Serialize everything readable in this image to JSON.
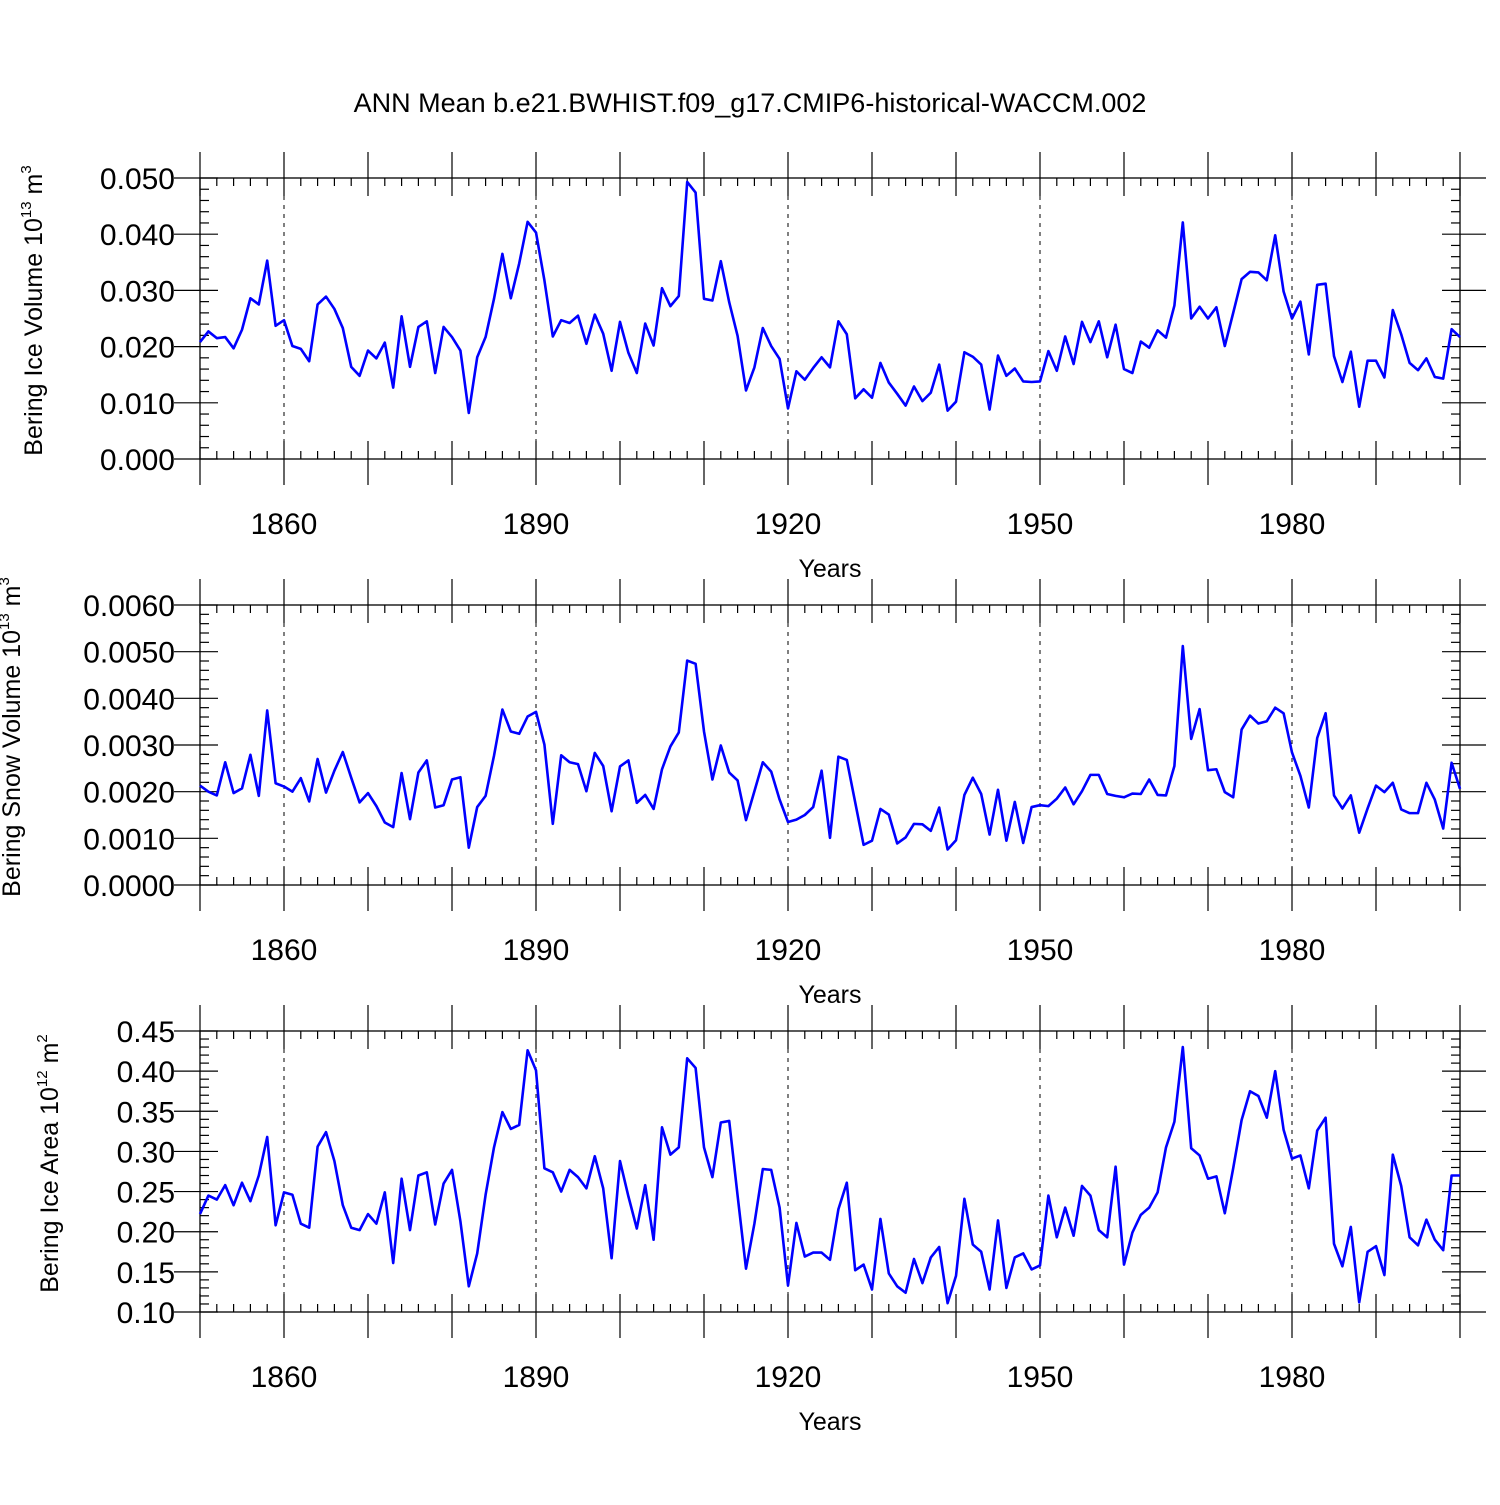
{
  "title": "ANN Mean b.e21.BWHIST.f09_g17.CMIP6-historical-WACCM.002",
  "colors": {
    "line": "#0000ff",
    "axes": "#000000",
    "background": "#ffffff"
  },
  "chart_data": [
    {
      "type": "line",
      "ylabel": {
        "text": "Bering Ice Volume 10",
        "exp": "13",
        "unit": " m",
        "unit_exp": "3"
      },
      "xlabel": "Years",
      "xlim": [
        1850,
        2000
      ],
      "ylim": [
        0.0,
        0.05
      ],
      "yticks": [
        0.0,
        0.01,
        0.02,
        0.03,
        0.04,
        0.05
      ],
      "ytick_labels": [
        "0.000",
        "0.010",
        "0.020",
        "0.030",
        "0.040",
        "0.050"
      ],
      "xticks": [
        1860,
        1890,
        1920,
        1950,
        1980
      ],
      "xtick_labels": [
        "1860",
        "1890",
        "1920",
        "1950",
        "1980"
      ],
      "grid": "vertical dashed at major x ticks",
      "x_start": 1850,
      "values": [
        0.0208,
        0.0227,
        0.0215,
        0.0217,
        0.0197,
        0.023,
        0.0286,
        0.0275,
        0.0353,
        0.0237,
        0.0247,
        0.0201,
        0.0196,
        0.0174,
        0.0275,
        0.0289,
        0.0267,
        0.0233,
        0.0164,
        0.0148,
        0.0193,
        0.0179,
        0.0207,
        0.0127,
        0.0254,
        0.0164,
        0.0235,
        0.0245,
        0.0153,
        0.0235,
        0.0217,
        0.0193,
        0.0082,
        0.0181,
        0.0217,
        0.0285,
        0.0365,
        0.0286,
        0.0348,
        0.0422,
        0.0403,
        0.0318,
        0.0218,
        0.0247,
        0.0242,
        0.0255,
        0.0205,
        0.0257,
        0.0223,
        0.0157,
        0.0244,
        0.0189,
        0.0153,
        0.0241,
        0.0202,
        0.0304,
        0.0272,
        0.029,
        0.0493,
        0.0474,
        0.0285,
        0.0282,
        0.0352,
        0.0279,
        0.0219,
        0.0122,
        0.0163,
        0.0233,
        0.0201,
        0.0178,
        0.009,
        0.0156,
        0.0141,
        0.0162,
        0.0181,
        0.0163,
        0.0245,
        0.0222,
        0.0108,
        0.0124,
        0.0109,
        0.0171,
        0.0136,
        0.0116,
        0.0095,
        0.0129,
        0.0103,
        0.0118,
        0.0168,
        0.0086,
        0.0102,
        0.019,
        0.0182,
        0.0168,
        0.0088,
        0.0184,
        0.0148,
        0.0161,
        0.0138,
        0.0137,
        0.0138,
        0.0192,
        0.0157,
        0.0218,
        0.0169,
        0.0244,
        0.0208,
        0.0245,
        0.0181,
        0.0239,
        0.016,
        0.0153,
        0.0209,
        0.0198,
        0.0229,
        0.0216,
        0.0273,
        0.0421,
        0.025,
        0.0271,
        0.025,
        0.027,
        0.0201,
        0.026,
        0.032,
        0.0333,
        0.0332,
        0.0318,
        0.0398,
        0.0298,
        0.025,
        0.028,
        0.0186,
        0.031,
        0.0312,
        0.0183,
        0.0137,
        0.0191,
        0.0093,
        0.0175,
        0.0175,
        0.0145,
        0.0265,
        0.0222,
        0.0171,
        0.0158,
        0.0179,
        0.0146,
        0.0143,
        0.0231,
        0.0217
      ]
    },
    {
      "type": "line",
      "ylabel": {
        "text": "Bering Snow Volume 10",
        "exp": "13",
        "unit": " m",
        "unit_exp": "3"
      },
      "xlabel": "Years",
      "xlim": [
        1850,
        2000
      ],
      "ylim": [
        0.0,
        0.006
      ],
      "yticks": [
        0.0,
        0.001,
        0.002,
        0.003,
        0.004,
        0.005,
        0.006
      ],
      "ytick_labels": [
        "0.0000",
        "0.0010",
        "0.0020",
        "0.0030",
        "0.0040",
        "0.0050",
        "0.0060"
      ],
      "xticks": [
        1860,
        1890,
        1920,
        1950,
        1980
      ],
      "xtick_labels": [
        "1860",
        "1890",
        "1920",
        "1950",
        "1980"
      ],
      "grid": "vertical dashed at major x ticks",
      "x_start": 1850,
      "values": [
        0.00213,
        0.002,
        0.00192,
        0.00263,
        0.00197,
        0.00207,
        0.00279,
        0.00191,
        0.00374,
        0.00218,
        0.00211,
        0.002,
        0.00229,
        0.00179,
        0.0027,
        0.00198,
        0.00245,
        0.00285,
        0.0023,
        0.00177,
        0.00197,
        0.00169,
        0.00134,
        0.00124,
        0.0024,
        0.00141,
        0.00241,
        0.00267,
        0.00166,
        0.00171,
        0.00226,
        0.00231,
        0.0008,
        0.00167,
        0.00191,
        0.00277,
        0.00376,
        0.00329,
        0.00324,
        0.00361,
        0.00371,
        0.00301,
        0.00131,
        0.00278,
        0.00263,
        0.00259,
        0.00201,
        0.00283,
        0.00255,
        0.00158,
        0.00254,
        0.00267,
        0.00176,
        0.00193,
        0.00163,
        0.00248,
        0.00297,
        0.00327,
        0.00481,
        0.00474,
        0.00329,
        0.00226,
        0.00299,
        0.00241,
        0.00224,
        0.00139,
        0.00201,
        0.00263,
        0.00243,
        0.00183,
        0.00135,
        0.0014,
        0.0015,
        0.00167,
        0.00245,
        0.00101,
        0.00275,
        0.00268,
        0.00177,
        0.00086,
        0.00095,
        0.00163,
        0.00151,
        0.00089,
        0.00102,
        0.00131,
        0.0013,
        0.00116,
        0.00166,
        0.00076,
        0.00096,
        0.00193,
        0.0023,
        0.00195,
        0.00108,
        0.00204,
        0.00095,
        0.00178,
        0.0009,
        0.00167,
        0.00171,
        0.00169,
        0.00185,
        0.00209,
        0.00173,
        0.00201,
        0.00236,
        0.00236,
        0.00195,
        0.00191,
        0.00188,
        0.00196,
        0.00195,
        0.00226,
        0.00193,
        0.00192,
        0.00255,
        0.00512,
        0.00313,
        0.00377,
        0.00246,
        0.00248,
        0.00199,
        0.00188,
        0.00333,
        0.00363,
        0.00346,
        0.00351,
        0.0038,
        0.00368,
        0.00284,
        0.00234,
        0.00166,
        0.00315,
        0.00368,
        0.00192,
        0.00164,
        0.00192,
        0.00112,
        0.00164,
        0.00213,
        0.00199,
        0.00219,
        0.00162,
        0.00154,
        0.00154,
        0.00219,
        0.00183,
        0.00121,
        0.00262,
        0.00206
      ]
    },
    {
      "type": "line",
      "ylabel": {
        "text": "Bering Ice Area 10",
        "exp": "12",
        "unit": " m",
        "unit_exp": "2"
      },
      "xlabel": "Years",
      "xlim": [
        1850,
        2000
      ],
      "ylim": [
        0.1,
        0.45
      ],
      "yticks": [
        0.1,
        0.15,
        0.2,
        0.25,
        0.3,
        0.35,
        0.4,
        0.45
      ],
      "ytick_labels": [
        "0.10",
        "0.15",
        "0.20",
        "0.25",
        "0.30",
        "0.35",
        "0.40",
        "0.45"
      ],
      "xticks": [
        1860,
        1890,
        1920,
        1950,
        1980
      ],
      "xtick_labels": [
        "1860",
        "1890",
        "1920",
        "1950",
        "1980"
      ],
      "grid": "vertical dashed at major x ticks",
      "x_start": 1850,
      "values": [
        0.222,
        0.245,
        0.24,
        0.258,
        0.233,
        0.261,
        0.238,
        0.27,
        0.318,
        0.208,
        0.249,
        0.246,
        0.21,
        0.205,
        0.306,
        0.324,
        0.288,
        0.233,
        0.205,
        0.202,
        0.222,
        0.21,
        0.249,
        0.161,
        0.266,
        0.202,
        0.27,
        0.274,
        0.209,
        0.26,
        0.277,
        0.213,
        0.132,
        0.173,
        0.246,
        0.305,
        0.349,
        0.328,
        0.333,
        0.426,
        0.401,
        0.279,
        0.274,
        0.25,
        0.277,
        0.268,
        0.254,
        0.294,
        0.254,
        0.167,
        0.288,
        0.244,
        0.204,
        0.258,
        0.19,
        0.33,
        0.296,
        0.305,
        0.416,
        0.404,
        0.305,
        0.268,
        0.336,
        0.338,
        0.245,
        0.154,
        0.21,
        0.278,
        0.277,
        0.23,
        0.133,
        0.211,
        0.169,
        0.174,
        0.174,
        0.165,
        0.228,
        0.261,
        0.152,
        0.159,
        0.128,
        0.216,
        0.148,
        0.132,
        0.124,
        0.166,
        0.136,
        0.168,
        0.181,
        0.111,
        0.145,
        0.241,
        0.184,
        0.175,
        0.128,
        0.214,
        0.13,
        0.168,
        0.173,
        0.153,
        0.158,
        0.245,
        0.193,
        0.23,
        0.195,
        0.257,
        0.245,
        0.202,
        0.193,
        0.281,
        0.159,
        0.199,
        0.221,
        0.23,
        0.249,
        0.305,
        0.337,
        0.43,
        0.304,
        0.295,
        0.266,
        0.269,
        0.223,
        0.279,
        0.339,
        0.375,
        0.369,
        0.342,
        0.4,
        0.327,
        0.291,
        0.295,
        0.254,
        0.326,
        0.342,
        0.185,
        0.157,
        0.206,
        0.112,
        0.175,
        0.182,
        0.146,
        0.296,
        0.257,
        0.193,
        0.183,
        0.215,
        0.19,
        0.177,
        0.27,
        0.27
      ]
    }
  ]
}
